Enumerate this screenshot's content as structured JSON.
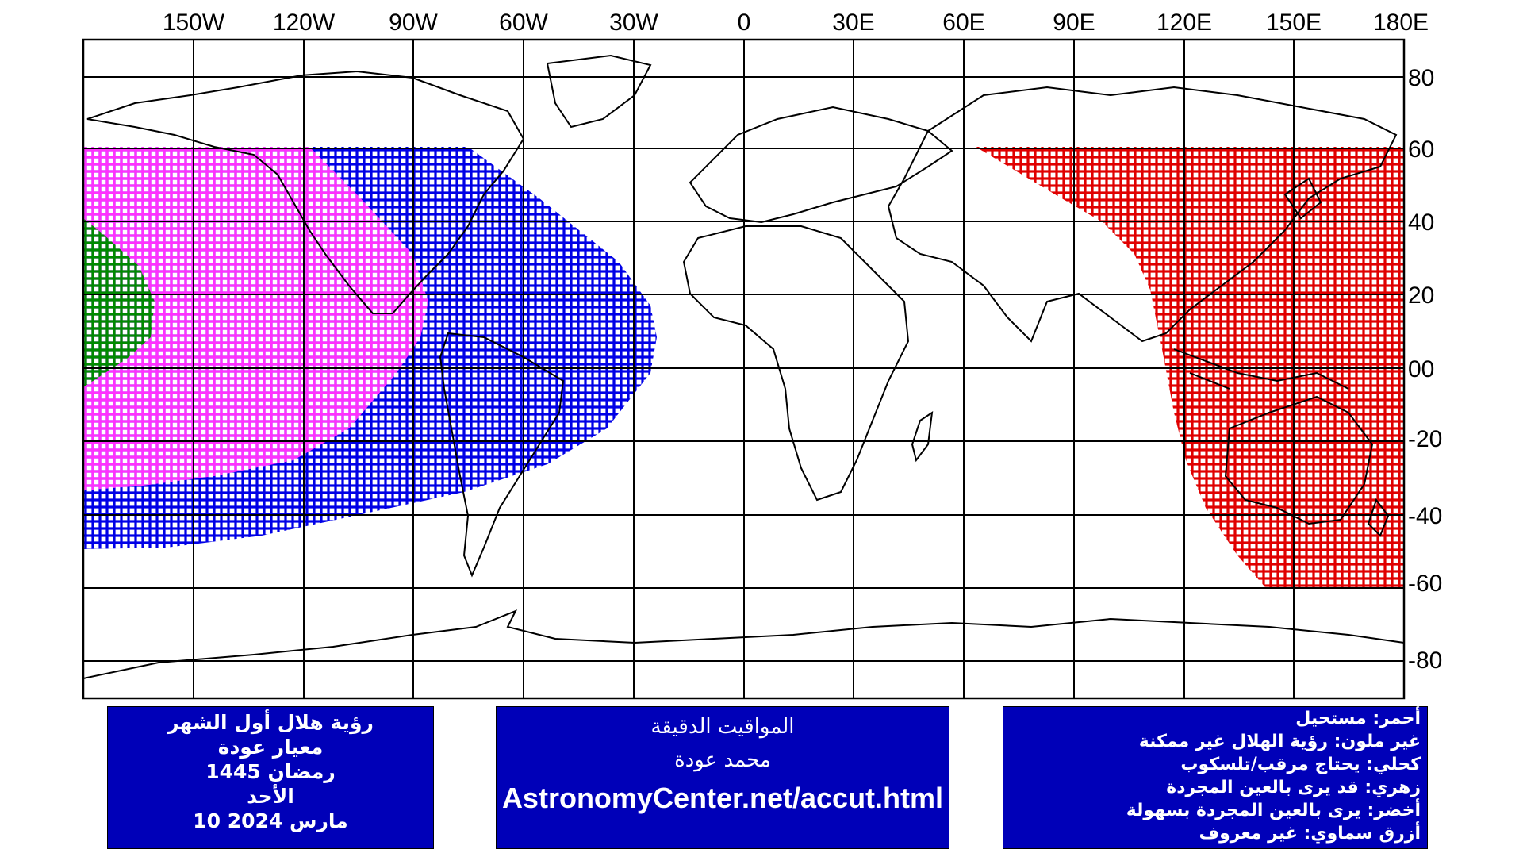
{
  "map": {
    "longitude_labels": [
      "150W",
      "120W",
      "90W",
      "60W",
      "30W",
      "0",
      "30E",
      "60E",
      "90E",
      "120E",
      "150E",
      "180E"
    ],
    "latitude_labels": [
      "80",
      "60",
      "40",
      "20",
      "00",
      "-20",
      "-40",
      "-60",
      "-80"
    ],
    "colors": {
      "red": "#e00000",
      "magenta": "#ff30ff",
      "blue": "#0000e6",
      "green": "#008a00",
      "panel": "#0000b8"
    }
  },
  "info_left": {
    "line1": "رؤية هلال أول الشهر",
    "line2": "معيار عودة",
    "line3": "رمضان 1445",
    "line4": "الأحد",
    "line5": "10 مارس 2024"
  },
  "info_mid": {
    "line1": "المواقيت الدقيقة",
    "line2": "محمد عودة",
    "url": "AstronomyCenter.net/accut.html"
  },
  "legend": {
    "red": "أحمر: مستحيل",
    "none": "غير ملون: رؤية الهلال غير ممكنة",
    "dark_blue": "كحلي: يحتاج مرقب/تلسكوب",
    "pink": "زهري: قد يرى بالعين المجردة",
    "green": "أخضر: يرى بالعين المجردة بسهولة",
    "sky_blue": "أزرق سماوي: غير معروف"
  }
}
